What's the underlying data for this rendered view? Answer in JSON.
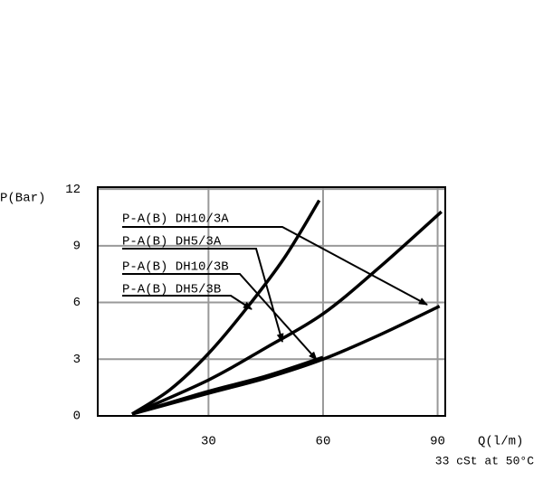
{
  "chart_data": {
    "type": "line",
    "y_label": "P(Bar)",
    "x_label": "Q(l/m)",
    "note": "33 cSt at 50°C",
    "xlim": [
      1,
      92
    ],
    "ylim": [
      0,
      12.1
    ],
    "xticks": [
      30,
      60,
      90
    ],
    "yticks": [
      0,
      3,
      6,
      9,
      12
    ],
    "grid": true,
    "series": [
      {
        "name": "P-A(B) DH10/3A",
        "color": "#000000",
        "x": [
          10,
          30,
          45,
          60,
          75,
          90.5
        ],
        "values": [
          0.1,
          1.2,
          2.0,
          3.0,
          4.3,
          5.8
        ]
      },
      {
        "name": "P-A(B) DH5/3A",
        "color": "#000000",
        "x": [
          10,
          30,
          45,
          60,
          75,
          91
        ],
        "values": [
          0.1,
          1.9,
          3.6,
          5.4,
          7.9,
          10.8
        ]
      },
      {
        "name": "P-A(B) DH10/3B",
        "color": "#000000",
        "x": [
          10,
          30,
          45,
          60
        ],
        "values": [
          0.1,
          1.3,
          2.1,
          3.1
        ]
      },
      {
        "name": "P-A(B) DH5/3B",
        "color": "#000000",
        "x": [
          10,
          20,
          30,
          40,
          50,
          59
        ],
        "values": [
          0.1,
          1.4,
          3.3,
          5.7,
          8.4,
          11.4
        ]
      }
    ]
  }
}
